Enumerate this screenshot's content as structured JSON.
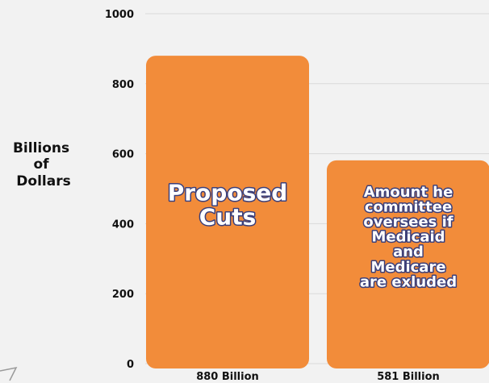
{
  "chart_data": {
    "type": "bar",
    "ylabel": [
      "Billions",
      "of",
      "Dollars"
    ],
    "ylim": [
      0,
      1000
    ],
    "yticks": [
      0,
      200,
      400,
      600,
      800,
      1000
    ],
    "grid": true,
    "categories": [
      "880 Billion",
      "581 Billion"
    ],
    "values": [
      880,
      581
    ],
    "bar_labels": [
      [
        "Proposed",
        "Cuts"
      ],
      [
        "Amount he",
        "committee",
        "oversees if",
        "Medicaid",
        "and",
        "Medicare",
        "are exluded"
      ]
    ],
    "bar_color": "#f28c3a",
    "label_color": "#ffffff",
    "label_outline_color": "#3b3f7a"
  }
}
